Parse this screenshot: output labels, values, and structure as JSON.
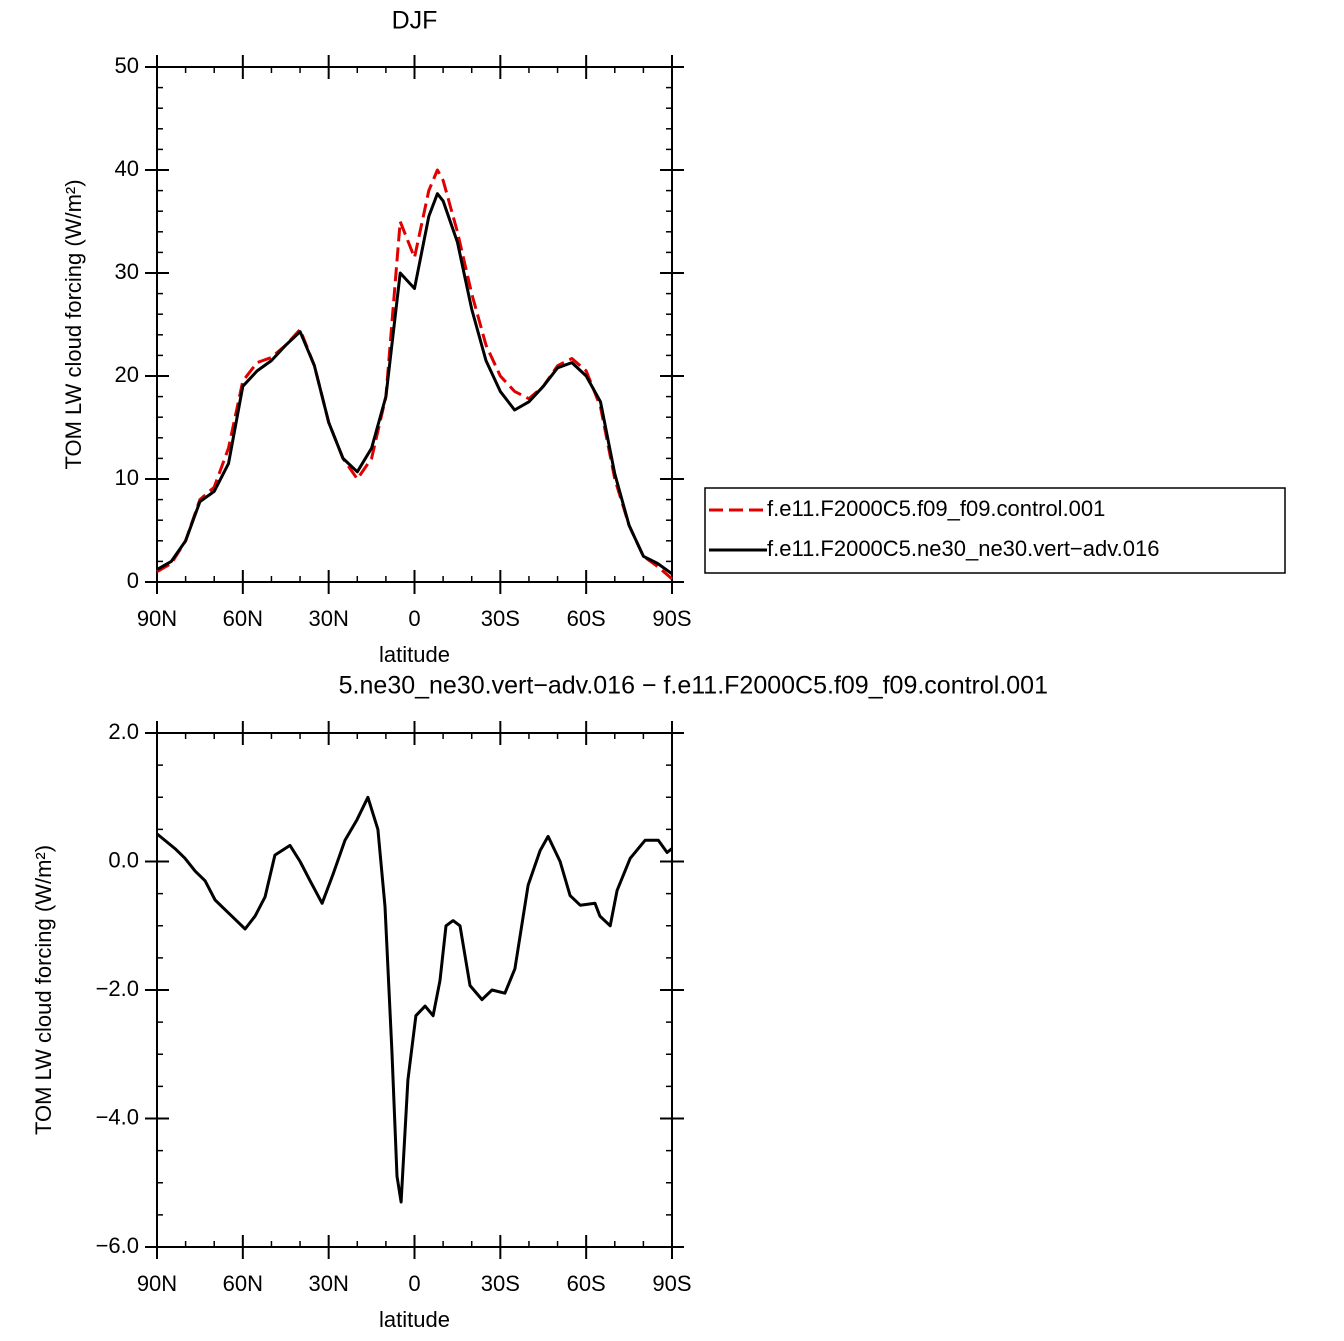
{
  "chart_data": [
    {
      "type": "line",
      "title": "DJF",
      "xlabel": "latitude",
      "ylabel": "TOM LW cloud forcing (W/m²)",
      "x": [
        90,
        85,
        80,
        75,
        70,
        65,
        60,
        55,
        50,
        45,
        40,
        35,
        30,
        25,
        20,
        15,
        10,
        5,
        0,
        -5,
        -8,
        -10,
        -15,
        -20,
        -25,
        -30,
        -35,
        -40,
        -45,
        -50,
        -55,
        -60,
        -65,
        -70,
        -75,
        -80,
        -85,
        -90
      ],
      "series": [
        {
          "name": "f.e11.F2000C5.f09_f09.control.001",
          "color": "#e00000",
          "dash": "dashed",
          "values": [
            1.0,
            1.8,
            4,
            8,
            9.2,
            13,
            19.5,
            21.3,
            21.8,
            23,
            24.5,
            21,
            15.5,
            12,
            10,
            12,
            18,
            35,
            31.5,
            38,
            40,
            39,
            34,
            28,
            23,
            20,
            18.5,
            17.8,
            19,
            21,
            21.7,
            20.5,
            17,
            10,
            5.5,
            2.5,
            1.5,
            0.3
          ]
        },
        {
          "name": "f.e11.F2000C5.ne30_ne30.vert−adv.016",
          "color": "#000000",
          "dash": "solid",
          "values": [
            1.2,
            2.0,
            4,
            7.8,
            8.8,
            11.5,
            19,
            20.5,
            21.5,
            23,
            24.3,
            21,
            15.5,
            12,
            10.7,
            13,
            18,
            30,
            28.5,
            35.5,
            37.7,
            37,
            33,
            26.5,
            21.5,
            18.5,
            16.7,
            17.5,
            19,
            20.8,
            21.3,
            20,
            17.5,
            10.5,
            5.5,
            2.5,
            1.8,
            0.8
          ]
        }
      ],
      "xlim": [
        90,
        -90
      ],
      "xticks": [
        {
          "value": 90,
          "label": "90N"
        },
        {
          "value": 60,
          "label": "60N"
        },
        {
          "value": 30,
          "label": "30N"
        },
        0,
        {
          "value": -30,
          "label": "30S"
        },
        {
          "value": -60,
          "label": "60S"
        },
        {
          "value": -90,
          "label": "90S"
        }
      ],
      "xminorticks": [
        80,
        70,
        50,
        40,
        20,
        10,
        -10,
        -20,
        -40,
        -50,
        -70,
        -80
      ],
      "ylim": [
        0,
        50
      ],
      "yticks": [
        0,
        10,
        20,
        30,
        40,
        50
      ],
      "yminorticks": [
        2,
        4,
        6,
        8,
        12,
        14,
        16,
        18,
        22,
        24,
        26,
        28,
        32,
        34,
        36,
        38,
        42,
        44,
        46,
        48
      ],
      "legend": "outside right"
    },
    {
      "type": "line",
      "title": "5.ne30_ne30.vert−adv.016 − f.e11.F2000C5.f09_f09.control.001",
      "xlabel": "latitude",
      "ylabel": "TOM LW cloud forcing (W/m²)",
      "x": [
        90,
        83.7,
        80.2,
        76.7,
        73.2,
        69.7,
        66.2,
        62.7,
        59.2,
        55.7,
        52.2,
        48.8,
        43.5,
        40,
        36.5,
        32.3,
        28.5,
        24.3,
        20.1,
        16.3,
        12.8,
        10.3,
        7.9,
        6.1,
        4.7,
        2.3,
        -0.5,
        -3.7,
        -6.5,
        -8.9,
        -11,
        -13.5,
        -15.9,
        -19.4,
        -23.6,
        -27.1,
        -31.6,
        -35.1,
        -39.7,
        -43.9,
        -46.7,
        -50.9,
        -54.4,
        -57.9,
        -63.1,
        -64.8,
        -68.4,
        -70.8,
        -75.4,
        -80.6,
        -85.2,
        -88.3,
        -90
      ],
      "series": [
        {
          "color": "#000000",
          "dash": "solid",
          "values": [
            0.43,
            0.2,
            0.05,
            -0.15,
            -0.3,
            -0.6,
            -0.75,
            -0.9,
            -1.05,
            -0.85,
            -0.55,
            0.1,
            0.25,
            0.0,
            -0.3,
            -0.65,
            -0.2,
            0.33,
            0.65,
            1.0,
            0.5,
            -0.7,
            -2.95,
            -4.9,
            -5.3,
            -3.4,
            -2.4,
            -2.25,
            -2.4,
            -1.85,
            -1.0,
            -0.92,
            -1.0,
            -1.93,
            -2.15,
            -2.0,
            -2.05,
            -1.67,
            -0.37,
            0.17,
            0.39,
            0.0,
            -0.53,
            -0.68,
            -0.65,
            -0.85,
            -1.0,
            -0.45,
            0.05,
            0.33,
            0.33,
            0.14,
            0.2
          ]
        }
      ],
      "xlim": [
        90,
        -90
      ],
      "xticks": [
        {
          "value": 90,
          "label": "90N"
        },
        {
          "value": 60,
          "label": "60N"
        },
        {
          "value": 30,
          "label": "30N"
        },
        0,
        {
          "value": -30,
          "label": "30S"
        },
        {
          "value": -60,
          "label": "60S"
        },
        {
          "value": -90,
          "label": "90S"
        }
      ],
      "xminorticks": [
        80,
        70,
        50,
        40,
        20,
        10,
        -10,
        -20,
        -40,
        -50,
        -70,
        -80
      ],
      "ylim": [
        -6,
        2
      ],
      "yticks": [
        {
          "value": 2,
          "label": "2.0"
        },
        {
          "value": 0,
          "label": "0.0"
        },
        {
          "value": -2,
          "label": "−2.0"
        },
        {
          "value": -4,
          "label": "−4.0"
        },
        {
          "value": -6,
          "label": "−6.0"
        }
      ],
      "yminorticks": [
        1.5,
        1,
        0.5,
        -0.5,
        -1,
        -1.5,
        -2.5,
        -3,
        -3.5,
        -4.5,
        -5,
        -5.5
      ]
    }
  ]
}
